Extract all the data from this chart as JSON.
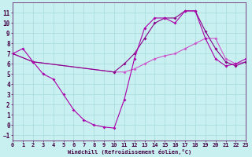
{
  "xlabel": "Windchill (Refroidissement éolien,°C)",
  "bg_color": "#c8f0f0",
  "grid_color": "#a8dada",
  "line1_x": [
    0,
    1,
    2,
    3,
    4,
    5,
    6,
    7,
    8,
    9,
    10,
    11,
    12,
    13,
    14,
    15,
    16,
    17,
    18,
    19,
    20,
    21,
    22,
    23
  ],
  "line1_y": [
    7.0,
    7.5,
    6.2,
    5.0,
    4.5,
    3.0,
    1.5,
    0.5,
    0.0,
    -0.2,
    -0.3,
    2.5,
    6.5,
    9.5,
    10.5,
    10.5,
    10.0,
    11.2,
    11.2,
    8.5,
    6.5,
    5.8,
    6.0,
    6.5
  ],
  "line2_x": [
    0,
    2,
    10,
    11,
    12,
    13,
    14,
    15,
    16,
    17,
    18,
    19,
    20,
    21,
    22,
    23
  ],
  "line2_y": [
    7.0,
    6.2,
    5.2,
    5.2,
    5.5,
    6.0,
    6.5,
    6.8,
    7.0,
    7.5,
    8.0,
    8.5,
    8.5,
    6.5,
    6.0,
    6.2
  ],
  "line3_x": [
    0,
    2,
    10,
    11,
    12,
    13,
    14,
    15,
    16,
    17,
    18,
    19,
    20,
    21,
    22,
    23
  ],
  "line3_y": [
    7.0,
    6.2,
    5.2,
    6.0,
    7.0,
    8.5,
    10.0,
    10.5,
    10.5,
    11.2,
    11.2,
    9.2,
    7.5,
    6.2,
    5.8,
    6.2
  ],
  "ylim": [
    -1.5,
    12.0
  ],
  "xlim": [
    0,
    23
  ],
  "yticks": [
    -1,
    0,
    1,
    2,
    3,
    4,
    5,
    6,
    7,
    8,
    9,
    10,
    11
  ],
  "xticks": [
    0,
    1,
    2,
    3,
    4,
    5,
    6,
    7,
    8,
    9,
    10,
    11,
    12,
    13,
    14,
    15,
    16,
    17,
    18,
    19,
    20,
    21,
    22,
    23
  ],
  "line1_color": "#aa00aa",
  "line2_color": "#cc55cc",
  "line3_color": "#880088"
}
